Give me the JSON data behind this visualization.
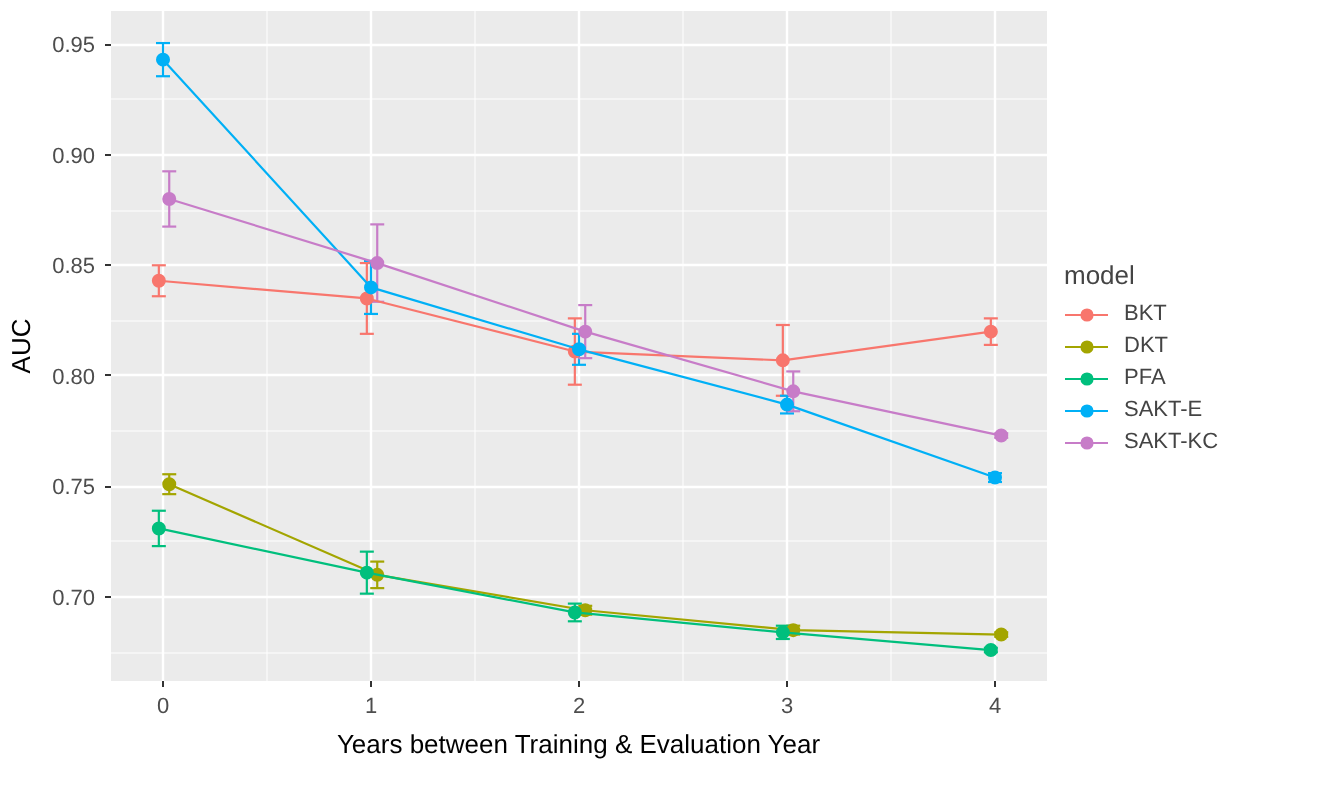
{
  "chart_data": {
    "type": "line",
    "xlabel": "Years between Training & Evaluation Year",
    "ylabel": "AUC",
    "legend_title": "model",
    "x": [
      0,
      1,
      2,
      3,
      4
    ],
    "xlim": [
      -0.25,
      4.25
    ],
    "xticks": [
      0,
      1,
      2,
      3,
      4
    ],
    "ylim": [
      0.662,
      0.965
    ],
    "yticks": [
      {
        "value": 0.7,
        "label": "0.70"
      },
      {
        "value": 0.75,
        "label": "0.75"
      },
      {
        "value": 0.8,
        "label": "0.80"
      },
      {
        "value": 0.85,
        "label": "0.85"
      },
      {
        "value": 0.9,
        "label": "0.90"
      },
      {
        "value": 0.95,
        "label": "0.95"
      }
    ],
    "grid": true,
    "legend": "right",
    "marker": "circle",
    "line_style": "solid",
    "series": [
      {
        "name": "BKT",
        "color": "#f8766d",
        "x": [
          -0.02,
          0.98,
          1.98,
          2.98,
          3.98
        ],
        "values": [
          0.843,
          0.835,
          0.811,
          0.807,
          0.82
        ],
        "errors": [
          0.007,
          0.016,
          0.015,
          0.016,
          0.006
        ]
      },
      {
        "name": "DKT",
        "color": "#a3a500",
        "x": [
          0.03,
          1.03,
          2.03,
          3.03,
          4.03
        ],
        "values": [
          0.751,
          0.71,
          0.694,
          0.685,
          0.683
        ],
        "errors": [
          0.0045,
          0.006,
          0.002,
          0.002,
          0.001
        ]
      },
      {
        "name": "PFA",
        "color": "#00bf7d",
        "x": [
          -0.02,
          0.98,
          1.98,
          2.98,
          3.98
        ],
        "values": [
          0.731,
          0.711,
          0.693,
          0.684,
          0.676
        ],
        "errors": [
          0.008,
          0.0095,
          0.004,
          0.003,
          0.001
        ]
      },
      {
        "name": "SAKT-E",
        "color": "#00b0f6",
        "values": [
          0.943,
          0.84,
          0.812,
          0.787,
          0.754
        ],
        "errors": [
          0.0075,
          0.012,
          0.007,
          0.004,
          0.002
        ]
      },
      {
        "name": "SAKT-KC",
        "color": "#c77cc8",
        "x": [
          0.03,
          1.03,
          2.03,
          3.03,
          4.03
        ],
        "values": [
          0.88,
          0.851,
          0.82,
          0.793,
          0.773
        ],
        "errors": [
          0.0125,
          0.0175,
          0.012,
          0.009,
          0.001
        ]
      }
    ]
  }
}
